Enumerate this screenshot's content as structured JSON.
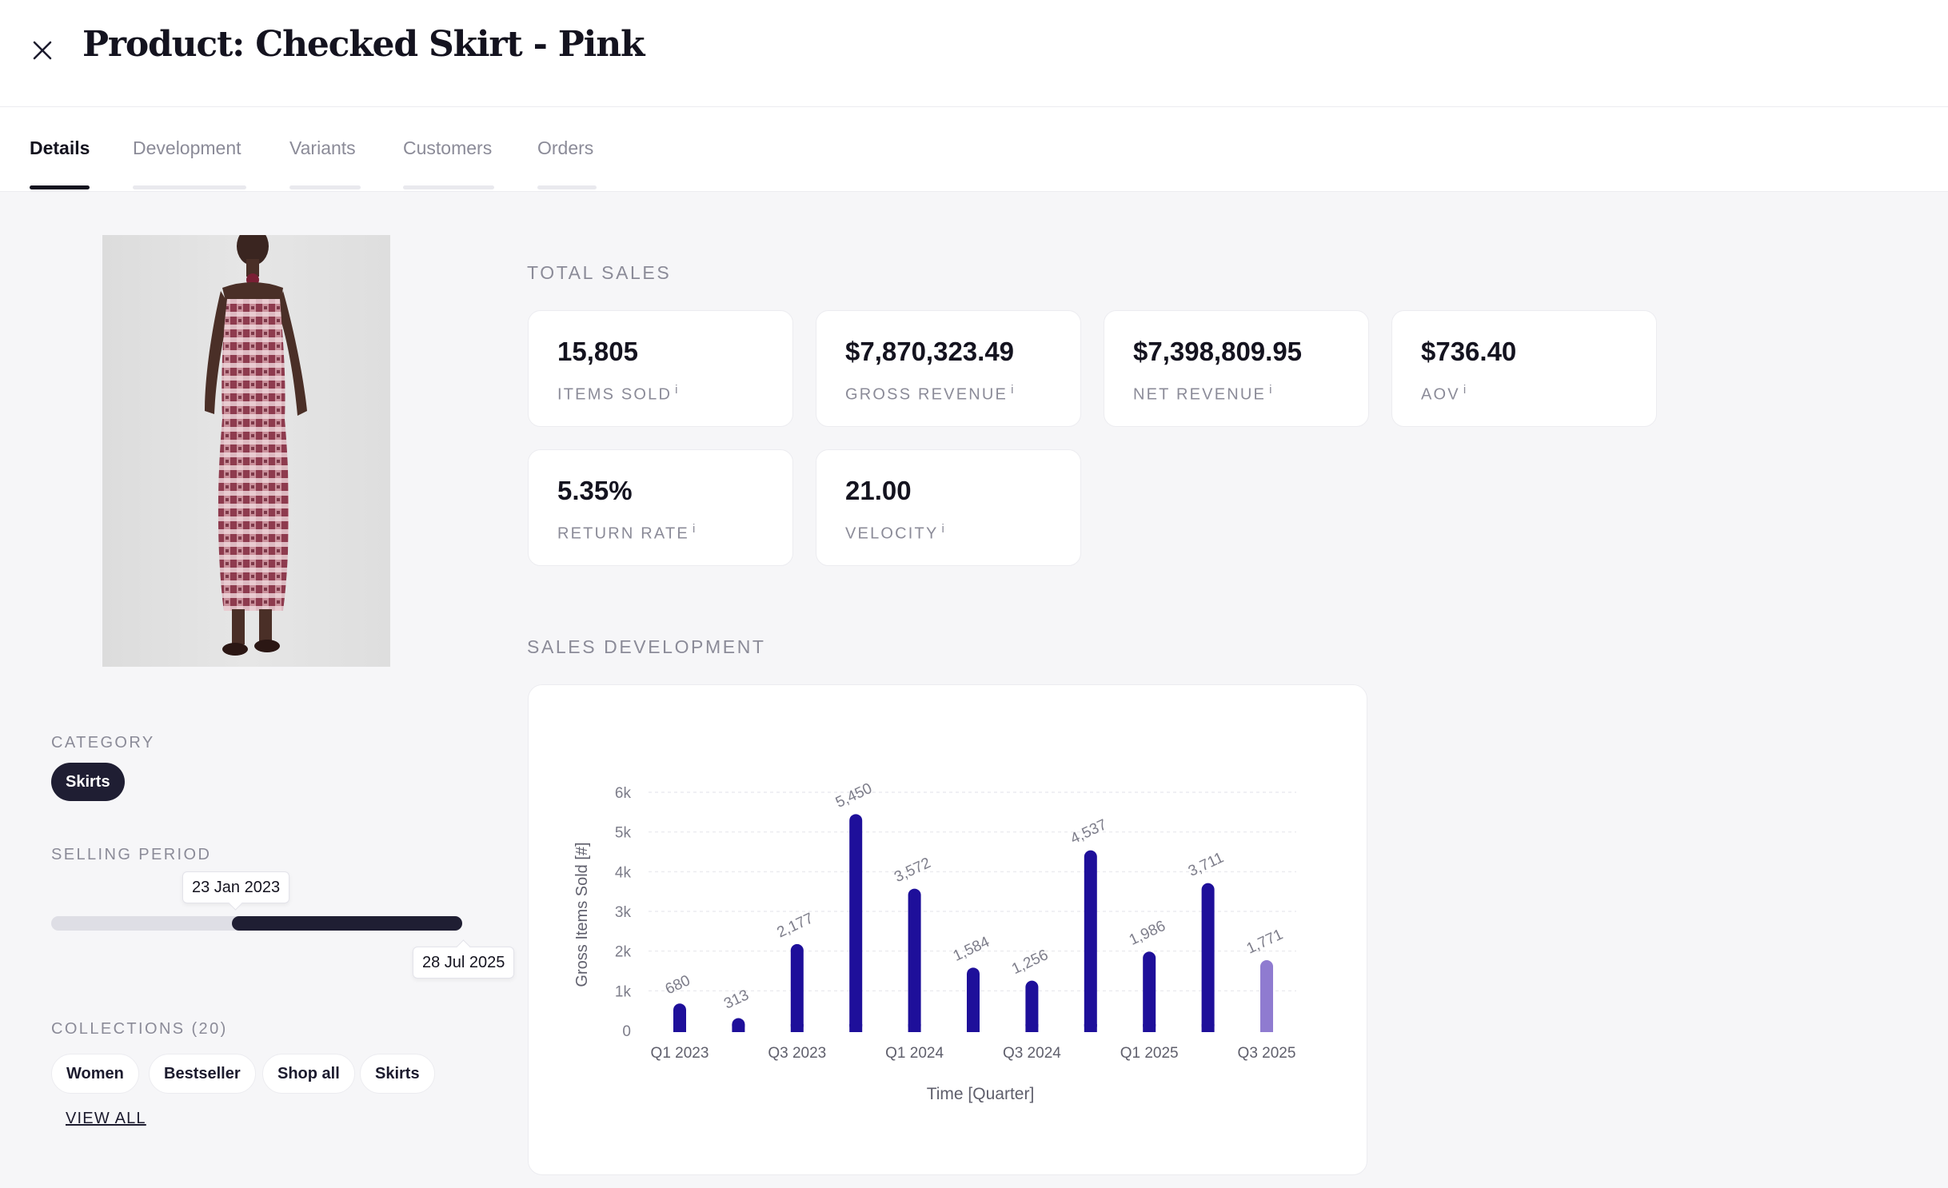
{
  "header": {
    "title": "Product: Checked Skirt - Pink",
    "close_icon": "close-icon"
  },
  "tabs": [
    {
      "label": "Details",
      "active": true
    },
    {
      "label": "Development",
      "active": false
    },
    {
      "label": "Variants",
      "active": false
    },
    {
      "label": "Customers",
      "active": false
    },
    {
      "label": "Orders",
      "active": false
    }
  ],
  "sidebar": {
    "category_label": "CATEGORY",
    "category_value": "Skirts",
    "selling_period_label": "SELLING PERIOD",
    "selling_start": "23 Jan 2023",
    "selling_end": "28 Jul 2025",
    "selling_progress_start_fraction": 0.44,
    "collections_label": "COLLECTIONS (20)",
    "collections": [
      "Women",
      "Bestseller",
      "Shop all",
      "Skirts"
    ],
    "view_all_label": "VIEW ALL"
  },
  "total_sales": {
    "label": "TOTAL SALES",
    "kpis": [
      {
        "value": "15,805",
        "label": "ITEMS SOLD",
        "info": "i"
      },
      {
        "value": "$7,870,323.49",
        "label": "GROSS REVENUE",
        "info": "i"
      },
      {
        "value": "$7,398,809.95",
        "label": "NET REVENUE",
        "info": "i"
      },
      {
        "value": "$736.40",
        "label": "AOV",
        "info": "i"
      },
      {
        "value": "5.35%",
        "label": "RETURN RATE",
        "info": "i"
      },
      {
        "value": "21.00",
        "label": "VELOCITY",
        "info": "i"
      }
    ]
  },
  "sales_development": {
    "label": "SALES DEVELOPMENT"
  },
  "colors": {
    "bar": "#1e0f9a",
    "bar_current": "#8f7bd0",
    "dark": "#1f1e33"
  },
  "chart_data": {
    "type": "bar",
    "categories": [
      "Q1 2023",
      "Q2 2023",
      "Q3 2023",
      "Q4 2023",
      "Q1 2024",
      "Q2 2024",
      "Q3 2024",
      "Q4 2024",
      "Q1 2025",
      "Q2 2025",
      "Q3 2025"
    ],
    "tick_labels": [
      "Q1 2023",
      "",
      "Q3 2023",
      "",
      "Q1 2024",
      "",
      "Q3 2024",
      "",
      "Q1 2025",
      "",
      "Q3 2025"
    ],
    "values": [
      680,
      313,
      2177,
      5450,
      3572,
      1584,
      1256,
      4537,
      1986,
      3711,
      1771
    ],
    "data_labels": [
      "680",
      "313",
      "2,177",
      "5,450",
      "3,572",
      "1,584",
      "1,256",
      "4,537",
      "1,986",
      "3,711",
      "1,771"
    ],
    "ylim": [
      0,
      6000
    ],
    "y_ticks": [
      0,
      1000,
      2000,
      3000,
      4000,
      5000,
      6000
    ],
    "y_tick_labels": [
      "0",
      "1k",
      "2k",
      "3k",
      "4k",
      "5k",
      "6k"
    ],
    "xlabel": "Time [Quarter]",
    "ylabel": "Gross Items Sold [#]",
    "grid": true,
    "highlight_last": true
  }
}
